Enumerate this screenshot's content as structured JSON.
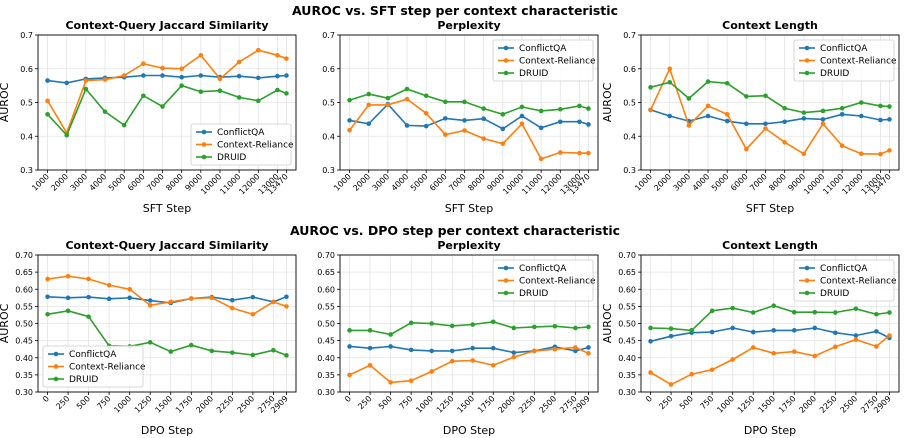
{
  "figure": {
    "row_titles": [
      "AUROC vs. SFT step per context characteristic",
      "AUROC vs. DPO step per context characteristic"
    ],
    "colors": {
      "ConflictQA": "#1f77b4",
      "Context-Reliance": "#ff7f0e",
      "DRUID": "#2ca02c"
    }
  },
  "chart_data": [
    {
      "type": "line",
      "row": 0,
      "col": 0,
      "title": "Context-Query Jaccard Similarity",
      "xlabel": "SFT Step",
      "ylabel": "AUROC",
      "x": [
        1000,
        2000,
        3000,
        4000,
        5000,
        6000,
        7000,
        8000,
        9000,
        10000,
        11000,
        12000,
        13000,
        13470
      ],
      "x_tick_labels": [
        "1000",
        "2000",
        "3000",
        "4000",
        "5000",
        "6000",
        "7000",
        "8000",
        "9000",
        "10000",
        "11000",
        "12000",
        "13000",
        "13470"
      ],
      "ylim": [
        0.3,
        0.7
      ],
      "y_ticks": [
        "0.3",
        "0.4",
        "0.5",
        "0.6",
        "0.7"
      ],
      "grid": true,
      "legend_position": "lower-right",
      "series": [
        {
          "name": "ConflictQA",
          "values": [
            0.565,
            0.558,
            0.57,
            0.573,
            0.575,
            0.58,
            0.58,
            0.575,
            0.58,
            0.575,
            0.578,
            0.573,
            0.578,
            0.58
          ]
        },
        {
          "name": "Context-Reliance",
          "values": [
            0.505,
            0.41,
            0.565,
            0.568,
            0.58,
            0.615,
            0.602,
            0.6,
            0.64,
            0.57,
            0.62,
            0.655,
            0.64,
            0.63
          ]
        },
        {
          "name": "DRUID",
          "values": [
            0.465,
            0.403,
            0.54,
            0.473,
            0.433,
            0.52,
            0.488,
            0.55,
            0.532,
            0.535,
            0.515,
            0.505,
            0.537,
            0.527
          ]
        }
      ]
    },
    {
      "type": "line",
      "row": 0,
      "col": 1,
      "title": "Perplexity",
      "xlabel": "SFT Step",
      "ylabel": "",
      "x": [
        1000,
        2000,
        3000,
        4000,
        5000,
        6000,
        7000,
        8000,
        9000,
        10000,
        11000,
        12000,
        13000,
        13470
      ],
      "x_tick_labels": [
        "1000",
        "2000",
        "3000",
        "4000",
        "5000",
        "6000",
        "7000",
        "8000",
        "9000",
        "10000",
        "11000",
        "12000",
        "13000",
        "13470"
      ],
      "ylim": [
        0.3,
        0.7
      ],
      "y_ticks": [
        "0.3",
        "0.4",
        "0.5",
        "0.6",
        "0.7"
      ],
      "grid": true,
      "legend_position": "upper-right",
      "series": [
        {
          "name": "ConflictQA",
          "values": [
            0.447,
            0.437,
            0.495,
            0.432,
            0.43,
            0.453,
            0.447,
            0.452,
            0.422,
            0.46,
            0.425,
            0.443,
            0.443,
            0.435
          ]
        },
        {
          "name": "Context-Reliance",
          "values": [
            0.418,
            0.493,
            0.493,
            0.51,
            0.468,
            0.405,
            0.417,
            0.393,
            0.378,
            0.437,
            0.333,
            0.352,
            0.35,
            0.35
          ]
        },
        {
          "name": "DRUID",
          "values": [
            0.507,
            0.525,
            0.513,
            0.54,
            0.52,
            0.502,
            0.502,
            0.482,
            0.465,
            0.487,
            0.475,
            0.48,
            0.49,
            0.482
          ]
        }
      ]
    },
    {
      "type": "line",
      "row": 0,
      "col": 2,
      "title": "Context Length",
      "xlabel": "SFT Step",
      "ylabel": "AUROC",
      "x": [
        1000,
        2000,
        3000,
        4000,
        5000,
        6000,
        7000,
        8000,
        9000,
        10000,
        11000,
        12000,
        13000,
        13470
      ],
      "x_tick_labels": [
        "1000",
        "2000",
        "3000",
        "4000",
        "5000",
        "6000",
        "7000",
        "8000",
        "9000",
        "10000",
        "11000",
        "12000",
        "13000",
        "13470"
      ],
      "ylim": [
        0.3,
        0.7
      ],
      "y_ticks": [
        "0.3",
        "0.4",
        "0.5",
        "0.6",
        "0.7"
      ],
      "grid": true,
      "legend_position": "upper-right",
      "series": [
        {
          "name": "ConflictQA",
          "values": [
            0.478,
            0.46,
            0.445,
            0.46,
            0.445,
            0.437,
            0.437,
            0.443,
            0.453,
            0.45,
            0.465,
            0.46,
            0.448,
            0.45
          ]
        },
        {
          "name": "Context-Reliance",
          "values": [
            0.478,
            0.6,
            0.432,
            0.49,
            0.465,
            0.362,
            0.423,
            0.382,
            0.348,
            0.437,
            0.372,
            0.348,
            0.347,
            0.358
          ]
        },
        {
          "name": "DRUID",
          "values": [
            0.545,
            0.56,
            0.512,
            0.562,
            0.557,
            0.518,
            0.52,
            0.483,
            0.47,
            0.475,
            0.483,
            0.5,
            0.49,
            0.488
          ]
        }
      ]
    },
    {
      "type": "line",
      "row": 1,
      "col": 0,
      "title": "Context-Query Jaccard Similarity",
      "xlabel": "DPO Step",
      "ylabel": "AUROC",
      "x": [
        0,
        250,
        500,
        750,
        1000,
        1250,
        1500,
        1750,
        2000,
        2250,
        2500,
        2750,
        2909
      ],
      "x_tick_labels": [
        "0",
        "250",
        "500",
        "750",
        "1000",
        "1250",
        "1500",
        "1750",
        "2000",
        "2250",
        "2500",
        "2750",
        "2909"
      ],
      "ylim": [
        0.3,
        0.7
      ],
      "y_ticks": [
        "0.30",
        "0.35",
        "0.40",
        "0.45",
        "0.50",
        "0.55",
        "0.60",
        "0.65",
        "0.70"
      ],
      "grid": true,
      "legend_position": "lower-left",
      "series": [
        {
          "name": "ConflictQA",
          "values": [
            0.578,
            0.575,
            0.577,
            0.572,
            0.575,
            0.567,
            0.56,
            0.573,
            0.577,
            0.568,
            0.577,
            0.563,
            0.578
          ]
        },
        {
          "name": "Context-Reliance",
          "values": [
            0.63,
            0.638,
            0.63,
            0.612,
            0.6,
            0.553,
            0.563,
            0.573,
            0.575,
            0.545,
            0.527,
            0.563,
            0.55
          ]
        },
        {
          "name": "DRUID",
          "values": [
            0.527,
            0.537,
            0.52,
            0.435,
            0.433,
            0.445,
            0.418,
            0.437,
            0.42,
            0.415,
            0.408,
            0.422,
            0.407
          ]
        }
      ]
    },
    {
      "type": "line",
      "row": 1,
      "col": 1,
      "title": "Perplexity",
      "xlabel": "DPO Step",
      "ylabel": "",
      "x": [
        0,
        250,
        500,
        750,
        1000,
        1250,
        1500,
        1750,
        2000,
        2250,
        2500,
        2750,
        2909
      ],
      "x_tick_labels": [
        "0",
        "250",
        "500",
        "750",
        "1000",
        "1250",
        "1500",
        "1750",
        "2000",
        "2250",
        "2500",
        "2750",
        "2909"
      ],
      "ylim": [
        0.3,
        0.7
      ],
      "y_ticks": [
        "0.30",
        "0.35",
        "0.40",
        "0.45",
        "0.50",
        "0.55",
        "0.60",
        "0.65",
        "0.70"
      ],
      "grid": true,
      "legend_position": "upper-right",
      "series": [
        {
          "name": "ConflictQA",
          "values": [
            0.433,
            0.428,
            0.433,
            0.423,
            0.42,
            0.42,
            0.428,
            0.428,
            0.415,
            0.42,
            0.432,
            0.42,
            0.43
          ]
        },
        {
          "name": "Context-Reliance",
          "values": [
            0.35,
            0.378,
            0.328,
            0.333,
            0.36,
            0.39,
            0.392,
            0.378,
            0.402,
            0.42,
            0.425,
            0.43,
            0.413
          ]
        },
        {
          "name": "DRUID",
          "values": [
            0.48,
            0.48,
            0.468,
            0.502,
            0.5,
            0.493,
            0.497,
            0.505,
            0.487,
            0.49,
            0.492,
            0.487,
            0.49
          ]
        }
      ]
    },
    {
      "type": "line",
      "row": 1,
      "col": 2,
      "title": "Context Length",
      "xlabel": "DPO Step",
      "ylabel": "AUROC",
      "x": [
        0,
        250,
        500,
        750,
        1000,
        1250,
        1500,
        1750,
        2000,
        2250,
        2500,
        2750,
        2909
      ],
      "x_tick_labels": [
        "0",
        "250",
        "500",
        "750",
        "1000",
        "1250",
        "1500",
        "1750",
        "2000",
        "2250",
        "2500",
        "2750",
        "2909"
      ],
      "ylim": [
        0.3,
        0.7
      ],
      "y_ticks": [
        "0.30",
        "0.35",
        "0.40",
        "0.45",
        "0.50",
        "0.55",
        "0.60",
        "0.65",
        "0.70"
      ],
      "grid": true,
      "legend_position": "upper-right",
      "series": [
        {
          "name": "ConflictQA",
          "values": [
            0.448,
            0.463,
            0.473,
            0.475,
            0.487,
            0.475,
            0.48,
            0.48,
            0.487,
            0.473,
            0.465,
            0.477,
            0.458
          ]
        },
        {
          "name": "Context-Reliance",
          "values": [
            0.357,
            0.322,
            0.352,
            0.365,
            0.395,
            0.43,
            0.413,
            0.418,
            0.405,
            0.432,
            0.453,
            0.433,
            0.465
          ]
        },
        {
          "name": "DRUID",
          "values": [
            0.487,
            0.485,
            0.48,
            0.537,
            0.545,
            0.532,
            0.552,
            0.533,
            0.533,
            0.532,
            0.543,
            0.527,
            0.532
          ]
        }
      ]
    }
  ]
}
